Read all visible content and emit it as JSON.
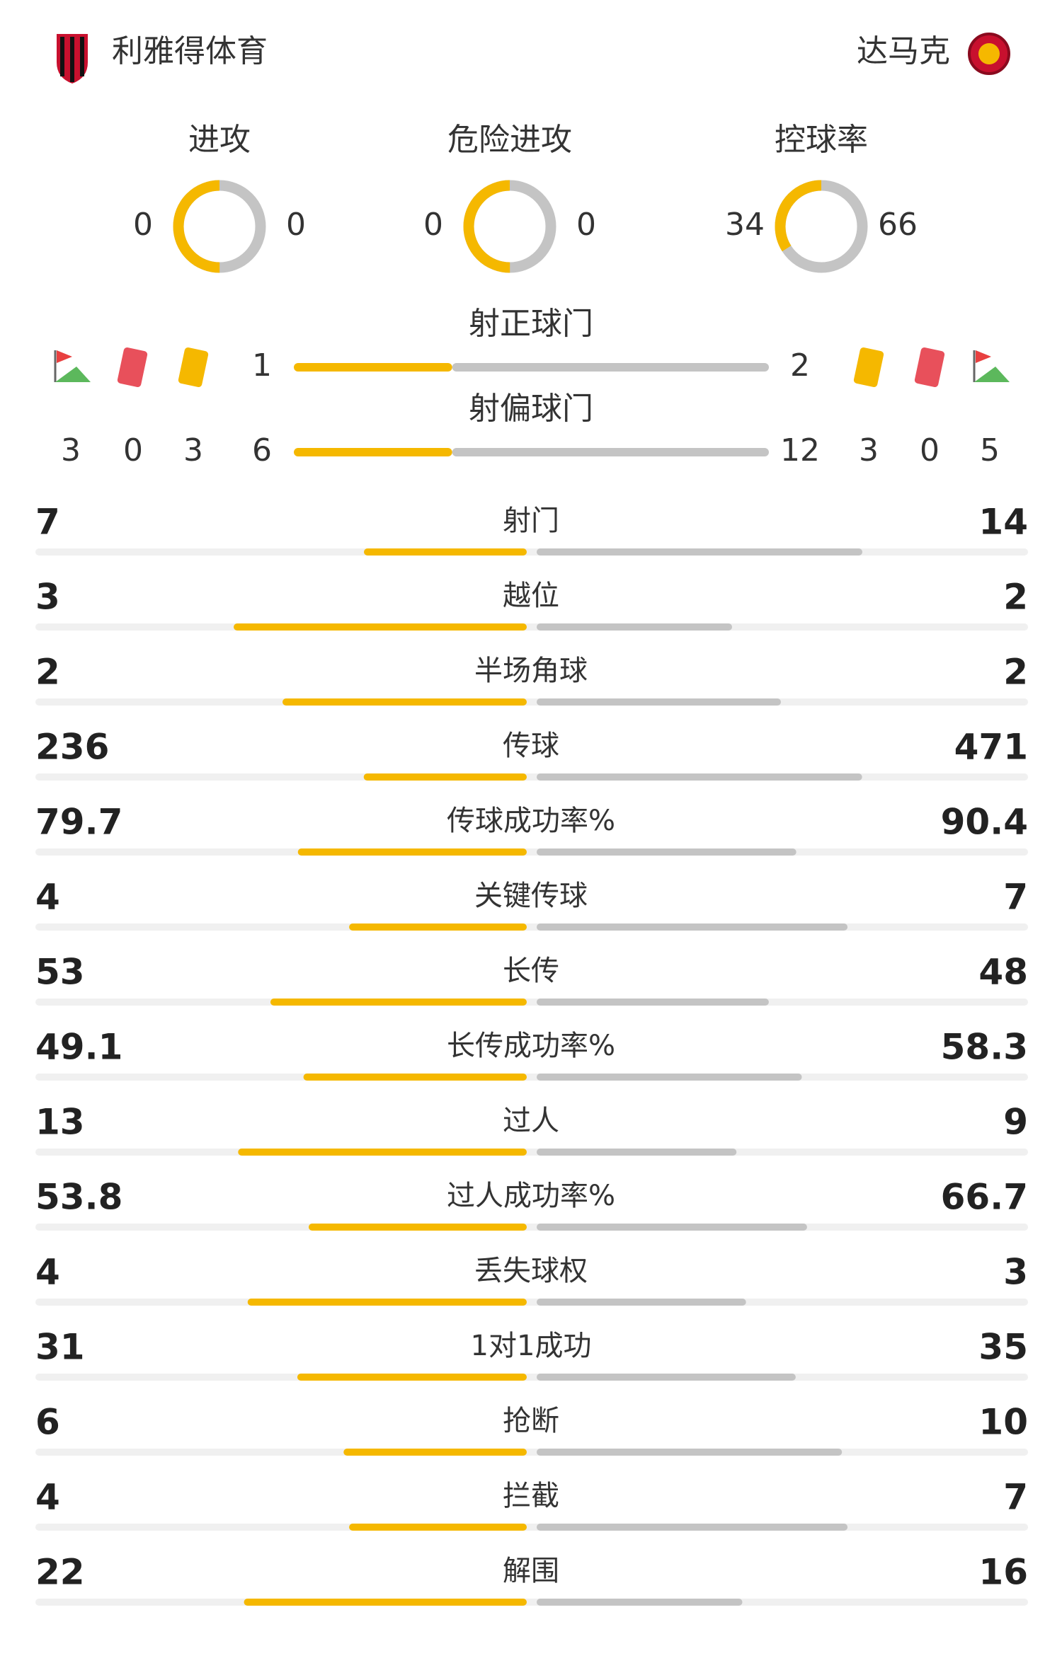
{
  "home": {
    "name": "利雅得体育",
    "corners": 3,
    "red_cards": 0,
    "yellow_cards": 3
  },
  "away": {
    "name": "达马克",
    "yellow_cards": 3,
    "red_cards": 0,
    "corners": 5
  },
  "rings": [
    {
      "label": "进攻",
      "home": 0,
      "away": 0
    },
    {
      "label": "危险进攻",
      "home": 0,
      "away": 0
    },
    {
      "label": "控球率",
      "home": 34,
      "away": 66
    }
  ],
  "shot_bars": [
    {
      "label": "射正球门",
      "home": 1,
      "away": 2
    },
    {
      "label": "射偏球门",
      "home": 6,
      "away": 12
    }
  ],
  "stats": [
    {
      "label": "射门",
      "home": 7,
      "away": 14
    },
    {
      "label": "越位",
      "home": 3,
      "away": 2
    },
    {
      "label": "半场角球",
      "home": 2,
      "away": 2
    },
    {
      "label": "传球",
      "home": 236,
      "away": 471
    },
    {
      "label": "传球成功率%",
      "home": 79.7,
      "away": 90.4
    },
    {
      "label": "关键传球",
      "home": 4,
      "away": 7
    },
    {
      "label": "长传",
      "home": 53,
      "away": 48
    },
    {
      "label": "长传成功率%",
      "home": 49.1,
      "away": 58.3
    },
    {
      "label": "过人",
      "home": 13,
      "away": 9
    },
    {
      "label": "过人成功率%",
      "home": 53.8,
      "away": 66.7
    },
    {
      "label": "丢失球权",
      "home": 4,
      "away": 3
    },
    {
      "label": "1对1成功",
      "home": 31,
      "away": 35
    },
    {
      "label": "抢断",
      "home": 6,
      "away": 10
    },
    {
      "label": "拦截",
      "home": 4,
      "away": 7
    },
    {
      "label": "解围",
      "home": 22,
      "away": 16
    }
  ]
}
